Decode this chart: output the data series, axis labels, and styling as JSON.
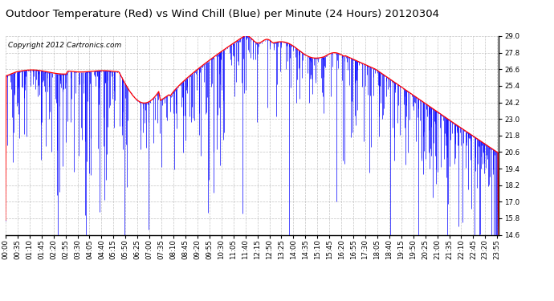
{
  "title": "Outdoor Temperature (Red) vs Wind Chill (Blue) per Minute (24 Hours) 20120304",
  "copyright_text": "Copyright 2012 Cartronics.com",
  "ylim": [
    14.6,
    29.0
  ],
  "yticks": [
    14.6,
    15.8,
    17.0,
    18.2,
    19.4,
    20.6,
    21.8,
    23.0,
    24.2,
    25.4,
    26.6,
    27.8,
    29.0
  ],
  "temp_color": "#FF0000",
  "wind_color": "#0000FF",
  "bg_color": "#FFFFFF",
  "grid_color": "#AAAAAA",
  "title_fontsize": 9.5,
  "tick_fontsize": 6.2,
  "copyright_fontsize": 6.5
}
